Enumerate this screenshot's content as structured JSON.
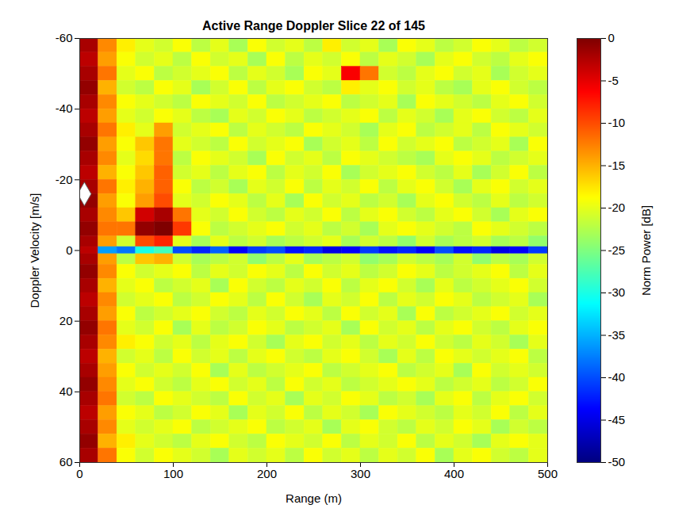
{
  "chart_data": {
    "type": "heatmap",
    "title": "Active Range Doppler Slice 22 of 145",
    "xlabel": "Range (m)",
    "ylabel": "Doppler Velocity [m/s]",
    "xlim": [
      0,
      500
    ],
    "xticks": [
      0,
      100,
      200,
      300,
      400,
      500
    ],
    "ylim": [
      60,
      -60
    ],
    "yticks": [
      -60,
      -40,
      -20,
      0,
      20,
      40,
      60
    ],
    "range_edges": [
      0,
      20,
      40,
      60,
      80,
      100,
      120,
      140,
      160,
      180,
      200,
      220,
      240,
      260,
      280,
      300,
      320,
      340,
      360,
      380,
      400,
      420,
      440,
      460,
      480,
      500
    ],
    "velocity_edges": [
      -60,
      -56,
      -52,
      -48,
      -44,
      -40,
      -36,
      -32,
      -28,
      -24,
      -20,
      -16,
      -12,
      -8,
      -4,
      -1,
      1,
      4,
      8,
      12,
      16,
      20,
      24,
      28,
      32,
      36,
      40,
      44,
      48,
      52,
      56,
      60
    ],
    "power": [
      [
        -2,
        -13,
        -18,
        -20,
        -21,
        -19,
        -22,
        -20,
        -23,
        -19,
        -21,
        -20,
        -22,
        -18,
        -21,
        -20,
        -23,
        -19,
        -20,
        -22,
        -21,
        -19,
        -20,
        -22,
        -21
      ],
      [
        -3,
        -14,
        -19,
        -21,
        -20,
        -22,
        -19,
        -21,
        -20,
        -23,
        -19,
        -22,
        -20,
        -21,
        -19,
        -22,
        -20,
        -21,
        -23,
        -20,
        -19,
        -21,
        -22,
        -20,
        -19
      ],
      [
        -2,
        -12,
        -20,
        -19,
        -22,
        -21,
        -20,
        -19,
        -22,
        -20,
        -21,
        -23,
        -19,
        -20,
        -6,
        -12,
        -21,
        -22,
        -20,
        -19,
        -21,
        -20,
        -23,
        -21,
        -20
      ],
      [
        -1,
        -15,
        -21,
        -22,
        -19,
        -20,
        -23,
        -21,
        -19,
        -22,
        -20,
        -19,
        -21,
        -22,
        -18,
        -20,
        -19,
        -21,
        -20,
        -22,
        -23,
        -20,
        -19,
        -21,
        -22
      ],
      [
        -2,
        -13,
        -19,
        -20,
        -21,
        -22,
        -19,
        -20,
        -21,
        -19,
        -22,
        -21,
        -20,
        -19,
        -22,
        -21,
        -20,
        -23,
        -19,
        -20,
        -21,
        -22,
        -20,
        -19,
        -21
      ],
      [
        -3,
        -14,
        -20,
        -21,
        -19,
        -20,
        -22,
        -23,
        -20,
        -21,
        -19,
        -20,
        -22,
        -21,
        -20,
        -19,
        -22,
        -20,
        -21,
        -23,
        -20,
        -19,
        -21,
        -22,
        -20
      ],
      [
        -2,
        -12,
        -18,
        -20,
        -14,
        -21,
        -20,
        -19,
        -22,
        -20,
        -21,
        -22,
        -19,
        -20,
        -21,
        -23,
        -20,
        -19,
        -22,
        -21,
        -20,
        -22,
        -19,
        -20,
        -21
      ],
      [
        -1,
        -14,
        -19,
        -16,
        -12,
        -20,
        -21,
        -22,
        -19,
        -21,
        -20,
        -19,
        -23,
        -21,
        -20,
        -22,
        -19,
        -21,
        -20,
        -19,
        -22,
        -21,
        -20,
        -23,
        -19
      ],
      [
        -2,
        -13,
        -20,
        -17,
        -12,
        -22,
        -19,
        -20,
        -21,
        -23,
        -19,
        -21,
        -20,
        -22,
        -19,
        -20,
        -21,
        -22,
        -23,
        -20,
        -19,
        -20,
        -22,
        -21,
        -20
      ],
      [
        -3,
        -15,
        -19,
        -16,
        -11,
        -21,
        -20,
        -22,
        -20,
        -19,
        -22,
        -20,
        -21,
        -19,
        -23,
        -21,
        -20,
        -19,
        -21,
        -22,
        -20,
        -23,
        -21,
        -19,
        -22
      ],
      [
        -2,
        -12,
        -18,
        -15,
        -11,
        -19,
        -22,
        -21,
        -23,
        -20,
        -21,
        -19,
        -22,
        -20,
        -21,
        -19,
        -22,
        -20,
        -19,
        -21,
        -23,
        -20,
        -19,
        -21,
        -20
      ],
      [
        -1,
        -14,
        -19,
        -14,
        -10,
        -20,
        -21,
        -19,
        -20,
        -22,
        -20,
        -23,
        -19,
        -21,
        -20,
        -22,
        -21,
        -23,
        -20,
        -19,
        -21,
        -22,
        -20,
        -22,
        -21
      ],
      [
        -2,
        -13,
        -16,
        -4,
        -2,
        -12,
        -20,
        -21,
        -19,
        -21,
        -22,
        -20,
        -21,
        -19,
        -22,
        -20,
        -19,
        -21,
        -22,
        -20,
        -19,
        -21,
        -23,
        -20,
        -19
      ],
      [
        -1,
        -12,
        -12,
        -1,
        0,
        -9,
        -19,
        -22,
        -21,
        -20,
        -19,
        -21,
        -20,
        -22,
        -21,
        -23,
        -20,
        -19,
        -20,
        -21,
        -22,
        -19,
        -20,
        -21,
        -22
      ],
      [
        -2,
        -14,
        -21,
        -10,
        -8,
        -20,
        -23,
        -20,
        -22,
        -21,
        -23,
        -22,
        -21,
        -20,
        -23,
        -21,
        -22,
        -24,
        -21,
        -23,
        -22,
        -21,
        -23,
        -22,
        -24
      ],
      [
        -3,
        -36,
        -38,
        -30,
        -28,
        -40,
        -42,
        -39,
        -44,
        -41,
        -40,
        -43,
        -42,
        -45,
        -44,
        -41,
        -43,
        -42,
        -44,
        -40,
        -43,
        -42,
        -45,
        -44,
        -41
      ],
      [
        -2,
        -14,
        -22,
        -16,
        -15,
        -21,
        -23,
        -22,
        -21,
        -24,
        -22,
        -20,
        -23,
        -22,
        -21,
        -24,
        -23,
        -21,
        -22,
        -23,
        -21,
        -24,
        -22,
        -23,
        -21
      ],
      [
        -1,
        -13,
        -19,
        -21,
        -20,
        -19,
        -22,
        -20,
        -21,
        -19,
        -20,
        -22,
        -19,
        -21,
        -20,
        -22,
        -21,
        -19,
        -20,
        -22,
        -21,
        -20,
        -19,
        -22,
        -20
      ],
      [
        -2,
        -15,
        -20,
        -19,
        -22,
        -21,
        -20,
        -23,
        -19,
        -21,
        -22,
        -20,
        -21,
        -19,
        -22,
        -20,
        -19,
        -21,
        -23,
        -20,
        -22,
        -21,
        -20,
        -19,
        -21
      ],
      [
        -3,
        -13,
        -21,
        -20,
        -19,
        -22,
        -21,
        -19,
        -20,
        -22,
        -19,
        -21,
        -23,
        -20,
        -21,
        -19,
        -22,
        -20,
        -21,
        -19,
        -20,
        -22,
        -21,
        -20,
        -23
      ],
      [
        -2,
        -14,
        -19,
        -22,
        -21,
        -20,
        -19,
        -21,
        -22,
        -20,
        -21,
        -19,
        -20,
        -22,
        -19,
        -21,
        -20,
        -23,
        -19,
        -22,
        -21,
        -20,
        -19,
        -21,
        -20
      ],
      [
        -1,
        -12,
        -20,
        -21,
        -19,
        -23,
        -20,
        -22,
        -21,
        -19,
        -20,
        -22,
        -21,
        -20,
        -23,
        -19,
        -21,
        -20,
        -22,
        -20,
        -19,
        -21,
        -22,
        -20,
        -19
      ],
      [
        -2,
        -13,
        -18,
        -19,
        -21,
        -20,
        -22,
        -20,
        -19,
        -21,
        -23,
        -20,
        -19,
        -21,
        -20,
        -22,
        -20,
        -21,
        -19,
        -21,
        -22,
        -20,
        -21,
        -23,
        -20
      ],
      [
        -3,
        -15,
        -21,
        -20,
        -22,
        -19,
        -21,
        -20,
        -22,
        -20,
        -19,
        -21,
        -22,
        -20,
        -19,
        -21,
        -23,
        -20,
        -22,
        -19,
        -20,
        -21,
        -20,
        -19,
        -22
      ],
      [
        -2,
        -14,
        -19,
        -21,
        -20,
        -21,
        -19,
        -23,
        -20,
        -22,
        -21,
        -20,
        -19,
        -22,
        -21,
        -20,
        -19,
        -22,
        -21,
        -20,
        -23,
        -19,
        -21,
        -20,
        -21
      ],
      [
        -1,
        -13,
        -20,
        -19,
        -21,
        -22,
        -20,
        -19,
        -21,
        -20,
        -22,
        -19,
        -21,
        -20,
        -22,
        -21,
        -20,
        -19,
        -20,
        -22,
        -21,
        -20,
        -22,
        -21,
        -19
      ],
      [
        -2,
        -12,
        -21,
        -22,
        -19,
        -20,
        -21,
        -22,
        -19,
        -21,
        -20,
        -23,
        -20,
        -21,
        -19,
        -20,
        -22,
        -21,
        -23,
        -20,
        -19,
        -22,
        -20,
        -19,
        -21
      ],
      [
        -3,
        -14,
        -19,
        -20,
        -22,
        -21,
        -19,
        -20,
        -23,
        -20,
        -21,
        -19,
        -22,
        -20,
        -21,
        -23,
        -19,
        -20,
        -21,
        -22,
        -20,
        -21,
        -19,
        -22,
        -20
      ],
      [
        -2,
        -13,
        -20,
        -21,
        -20,
        -19,
        -22,
        -21,
        -20,
        -19,
        -22,
        -21,
        -20,
        -23,
        -20,
        -19,
        -21,
        -22,
        -20,
        -21,
        -19,
        -20,
        -23,
        -21,
        -22
      ],
      [
        -1,
        -15,
        -18,
        -20,
        -21,
        -22,
        -20,
        -19,
        -21,
        -22,
        -19,
        -20,
        -21,
        -19,
        -22,
        -20,
        -21,
        -19,
        -22,
        -20,
        -21,
        -23,
        -20,
        -19,
        -20
      ],
      [
        -2,
        -12,
        -19,
        -21,
        -19,
        -20,
        -21,
        -23,
        -20,
        -21,
        -20,
        -22,
        -19,
        -21,
        -20,
        -22,
        -20,
        -21,
        -19,
        -23,
        -20,
        -19,
        -21,
        -22,
        -20
      ]
    ],
    "colorbar": {
      "label": "Norm Power [dB]",
      "lim": [
        -50,
        0
      ],
      "ticks": [
        0,
        -5,
        -10,
        -15,
        -20,
        -25,
        -30,
        -35,
        -40,
        -45,
        -50
      ]
    },
    "markers": [
      {
        "x": 5,
        "y": -16,
        "marker": "diamond"
      }
    ]
  }
}
